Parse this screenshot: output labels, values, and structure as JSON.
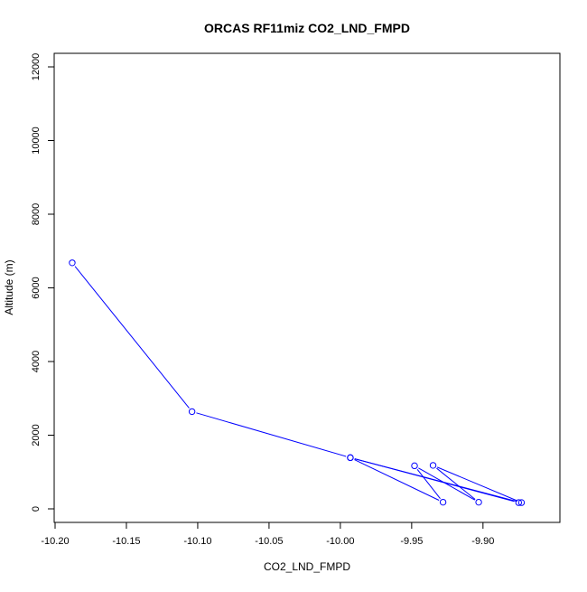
{
  "chart_data": {
    "type": "line",
    "title": "ORCAS RF11miz CO2_LND_FMPD",
    "xlabel": "CO2_LND_FMPD",
    "ylabel": "Altitude (m)",
    "xlim": [
      -10.2,
      -9.86
    ],
    "ylim": [
      0,
      12000
    ],
    "xticks": [
      -10.2,
      -10.15,
      -10.1,
      -10.05,
      -10.0,
      -9.95,
      -9.9
    ],
    "xtick_labels": [
      "-10.20",
      "-10.15",
      "-10.10",
      "-10.05",
      "-10.00",
      "-9.95",
      "-9.90"
    ],
    "yticks": [
      0,
      2000,
      4000,
      6000,
      8000,
      10000,
      12000
    ],
    "ytick_labels": [
      "0",
      "2000",
      "4000",
      "6000",
      "8000",
      "10000",
      "12000"
    ],
    "grid": false,
    "series": [
      {
        "color": "#0000ff",
        "marker": "open-circle",
        "points": [
          {
            "x": -10.188,
            "y": 6680
          },
          {
            "x": -10.104,
            "y": 2640
          },
          {
            "x": -9.993,
            "y": 1390
          },
          {
            "x": -9.873,
            "y": 170
          },
          {
            "x": -9.935,
            "y": 1180
          },
          {
            "x": -9.903,
            "y": 180
          },
          {
            "x": -9.948,
            "y": 1170
          },
          {
            "x": -9.928,
            "y": 180
          },
          {
            "x": -9.993,
            "y": 1390
          },
          {
            "x": -9.875,
            "y": 170
          }
        ]
      }
    ]
  }
}
